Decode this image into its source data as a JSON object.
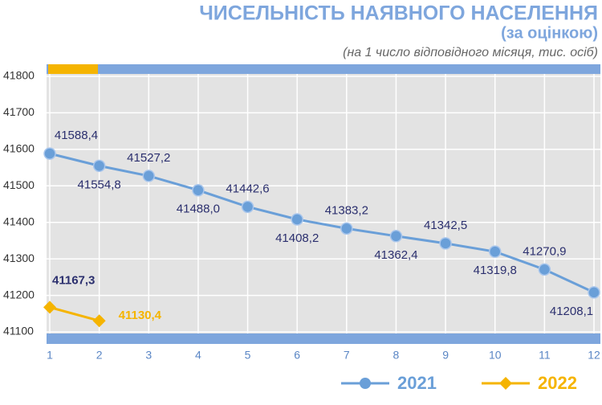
{
  "chart_data": {
    "type": "line",
    "title": "ЧИСЕЛЬНІСТЬ НАЯВНОГО НАСЕЛЕННЯ",
    "subtitle": "(за оцінкою)",
    "note": "(на 1 число відповідного місяця, тис. осіб)",
    "x": [
      1,
      2,
      3,
      4,
      5,
      6,
      7,
      8,
      9,
      10,
      11,
      12
    ],
    "xlim": [
      1,
      12
    ],
    "xticks": [
      1,
      2,
      3,
      4,
      5,
      6,
      7,
      8,
      9,
      10,
      11,
      12
    ],
    "ylim": [
      41100,
      41800
    ],
    "yticks": [
      41100,
      41200,
      41300,
      41400,
      41500,
      41600,
      41700,
      41800
    ],
    "grid": true,
    "series": [
      {
        "name": "2021",
        "color": "#6a9fd8",
        "values": [
          41588.4,
          41554.8,
          41527.2,
          41488.0,
          41442.6,
          41408.2,
          41383.2,
          41362.4,
          41342.5,
          41319.8,
          41270.9,
          41208.1
        ],
        "value_labels": [
          "41588,4",
          "41554,8",
          "41527,2",
          "41488,0",
          "41442,6",
          "41408,2",
          "41383,2",
          "41362,4",
          "41342,5",
          "41319,8",
          "41270,9",
          "41208,1"
        ]
      },
      {
        "name": "2022",
        "color": "#f5b400",
        "values": [
          41167.3,
          41130.4,
          null,
          null,
          null,
          null,
          null,
          null,
          null,
          null,
          null,
          null
        ],
        "value_labels": [
          "41167,3",
          "41130,4",
          null,
          null,
          null,
          null,
          null,
          null,
          null,
          null,
          null,
          null
        ]
      }
    ]
  }
}
